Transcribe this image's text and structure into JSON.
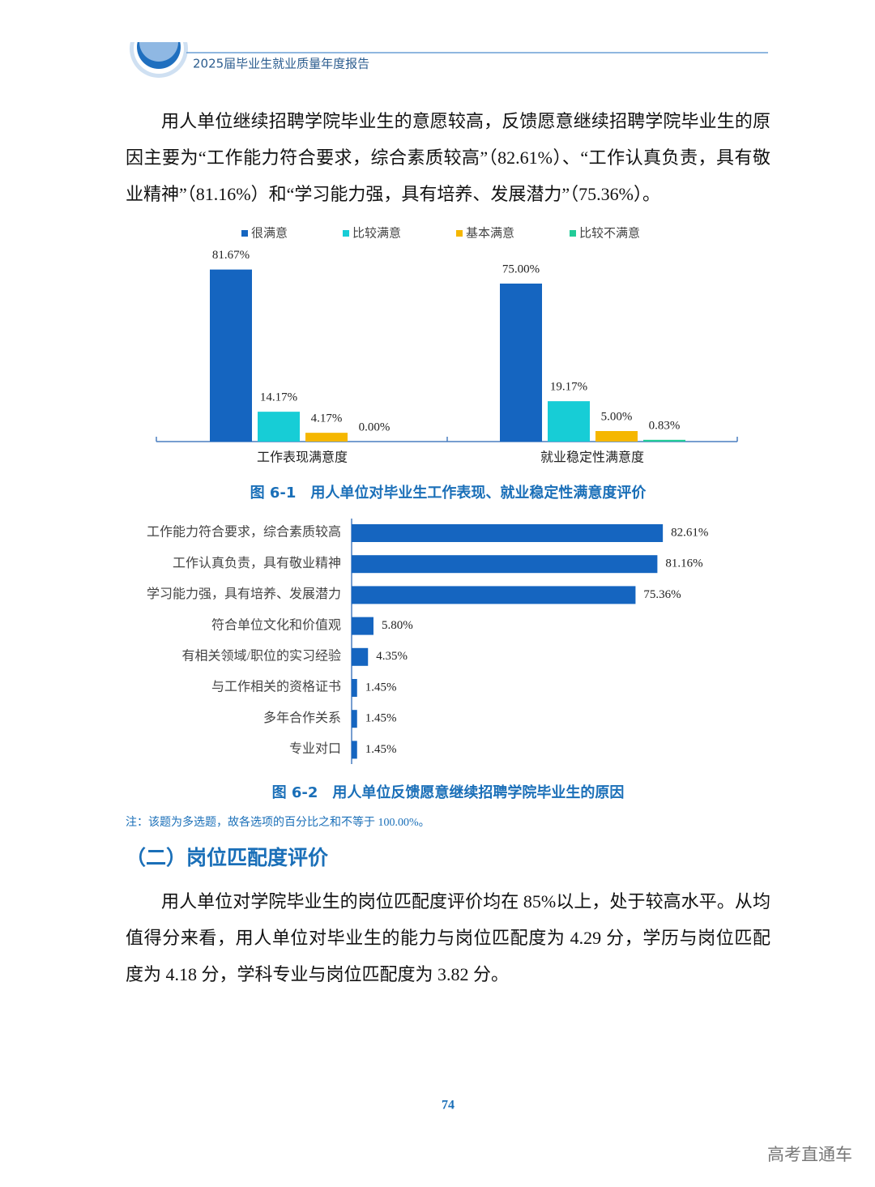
{
  "header": {
    "title": "2025届毕业生就业质量年度报告"
  },
  "paragraphs": [
    "用人单位继续招聘学院毕业生的意愿较高，反馈愿意继续招聘学院毕业生的原因主要为“工作能力符合要求，综合素质较高”（82.61%）、“工作认真负责，具有敬业精神”（81.16%）和“学习能力强，具有培养、发展潜力”（75.36%）。",
    "用人单位对学院毕业生的岗位匹配度评价均在 85%以上，处于较高水平。从均值得分来看，用人单位对毕业生的能力与岗位匹配度为 4.29 分，学历与岗位匹配度为 4.18 分，学科专业与岗位匹配度为 3.82 分。"
  ],
  "chart_data": [
    {
      "type": "bar",
      "title": "图 6-1　用人单位对毕业生工作表现、就业稳定性满意度评价",
      "categories": [
        "工作表现满意度",
        "就业稳定性满意度"
      ],
      "series": [
        {
          "name": "很满意",
          "color": "#1565c0",
          "values": [
            81.67,
            75.0
          ],
          "value_labels": [
            "81.67%",
            "75.00%"
          ]
        },
        {
          "name": "比较满意",
          "color": "#17cdd6",
          "values": [
            14.17,
            19.17
          ],
          "value_labels": [
            "14.17%",
            "19.17%"
          ]
        },
        {
          "name": "基本满意",
          "color": "#f5b700",
          "values": [
            4.17,
            5.0
          ],
          "value_labels": [
            "4.17%",
            "5.00%"
          ]
        },
        {
          "name": "比较不满意",
          "color": "#22cc98",
          "values": [
            0.0,
            0.83
          ],
          "value_labels": [
            "0.00%",
            "0.83%"
          ]
        }
      ],
      "legend": "top"
    },
    {
      "type": "barh",
      "title": "图 6-2　用人单位反馈愿意继续招聘学院毕业生的原因",
      "categories": [
        "工作能力符合要求，综合素质较高",
        "工作认真负责，具有敬业精神",
        "学习能力强，具有培养、发展潜力",
        "符合单位文化和价值观",
        "有相关领域/职位的实习经验",
        "与工作相关的资格证书",
        "多年合作关系",
        "专业对口"
      ],
      "values": [
        82.61,
        81.16,
        75.36,
        5.8,
        4.35,
        1.45,
        1.45,
        1.45
      ],
      "value_labels": [
        "82.61%",
        "81.16%",
        "75.36%",
        "5.80%",
        "4.35%",
        "1.45%",
        "1.45%",
        "1.45%"
      ],
      "color": "#1565c0"
    }
  ],
  "note": "注：该题为多选题，故各选项的百分比之和不等于 100.00%。",
  "section_heading": "（二）岗位匹配度评价",
  "page_number": "74",
  "watermark": "高考直通车"
}
